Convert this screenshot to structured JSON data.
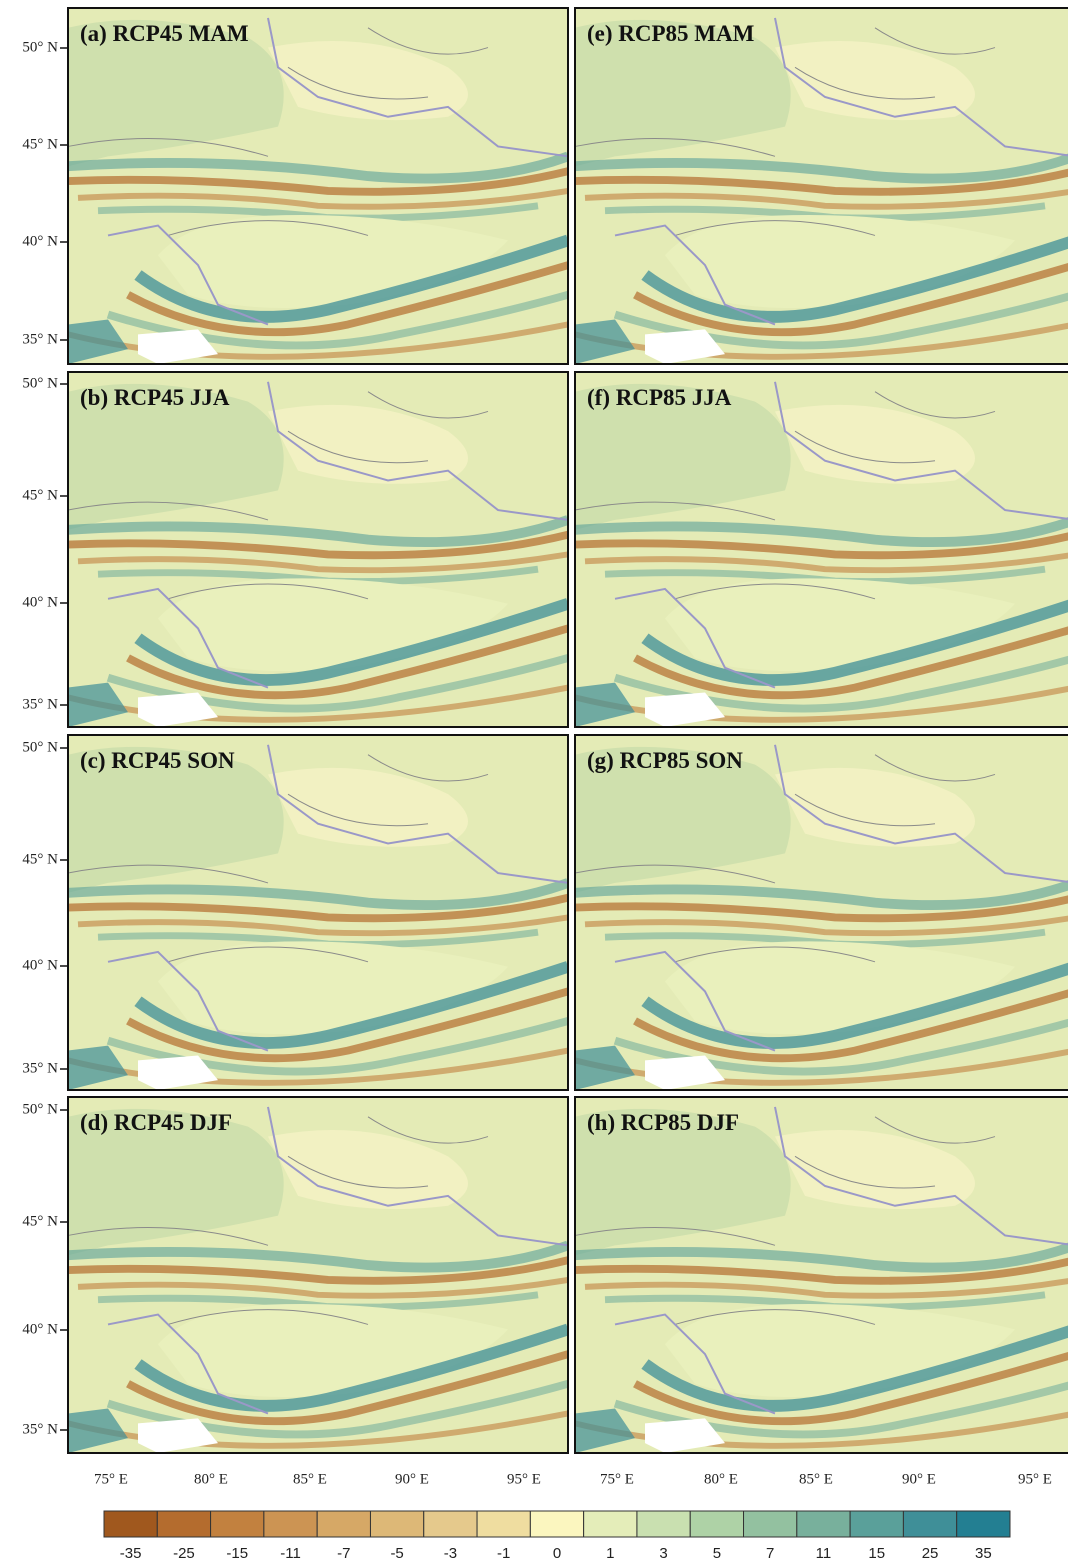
{
  "panels": [
    {
      "label": "(a) RCP45 MAM"
    },
    {
      "label": "(b) RCP45 JJA"
    },
    {
      "label": "(c) RCP45 SON"
    },
    {
      "label": "(d) RCP45 DJF"
    },
    {
      "label": "(e) RCP85 MAM"
    },
    {
      "label": "(f) RCP85 JJA"
    },
    {
      "label": "(g) RCP85 SON"
    },
    {
      "label": "(h) RCP85 DJF"
    }
  ],
  "lat_labels": [
    "50° N",
    "45° N",
    "40° N",
    "35° N"
  ],
  "lon_labels": [
    "75° E",
    "80° E",
    "85° E",
    "90° E",
    "95° E"
  ],
  "colorbar": {
    "levels": [
      -35,
      -25,
      -15,
      -11,
      -7,
      -5,
      -3,
      -1,
      0,
      1,
      3,
      5,
      7,
      11,
      15,
      25,
      35
    ],
    "colors": [
      "#a0581e",
      "#b46c2e",
      "#c2813f",
      "#cc9453",
      "#d6a866",
      "#ddb877",
      "#e5c98c",
      "#efdda0",
      "#fbf6bf",
      "#e4edb9",
      "#c9e0b0",
      "#aed2a6",
      "#93c1a0",
      "#78b09c",
      "#5aa09a",
      "#3f8f98",
      "#237f92"
    ]
  }
}
